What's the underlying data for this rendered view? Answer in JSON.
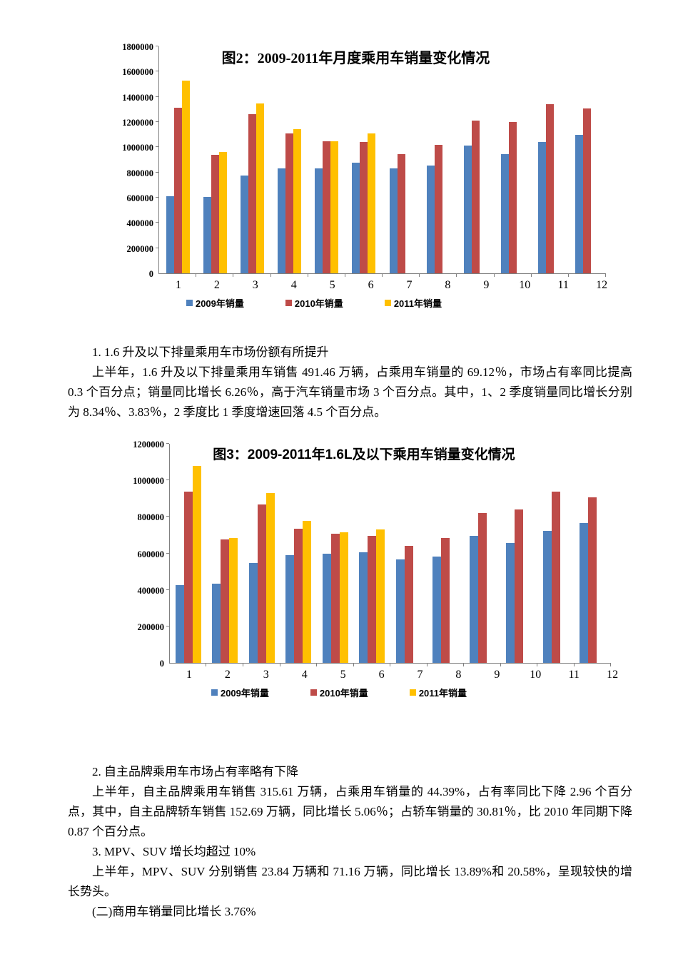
{
  "chart_data": [
    {
      "id": "chart1",
      "type": "bar",
      "title": "图2：2009-2011年月度乘用车销量变化情况",
      "categories": [
        "1",
        "2",
        "3",
        "4",
        "5",
        "6",
        "7",
        "8",
        "9",
        "10",
        "11",
        "12"
      ],
      "series": [
        {
          "name": "2009年销量",
          "color": "#4F81BD",
          "values": [
            610000,
            605000,
            775000,
            830000,
            830000,
            875000,
            830000,
            855000,
            1015000,
            945000,
            1040000,
            1100000
          ]
        },
        {
          "name": "2010年销量",
          "color": "#BE4B48",
          "values": [
            1315000,
            940000,
            1265000,
            1110000,
            1045000,
            1040000,
            945000,
            1020000,
            1210000,
            1200000,
            1340000,
            1310000
          ]
        },
        {
          "name": "2011年销量",
          "color": "#FFC000",
          "values": [
            1530000,
            965000,
            1350000,
            1145000,
            1045000,
            1110000,
            null,
            null,
            null,
            null,
            null,
            null
          ]
        }
      ],
      "xlabel": "",
      "ylabel": "",
      "ylim": [
        0,
        1800000
      ],
      "ytick_step": 200000,
      "grid": false,
      "legend_position": "bottom"
    },
    {
      "id": "chart2",
      "type": "bar",
      "title": "图3：2009-2011年1.6L及以下乘用车销量变化情况",
      "categories": [
        "1",
        "2",
        "3",
        "4",
        "5",
        "6",
        "7",
        "8",
        "9",
        "10",
        "11",
        "12"
      ],
      "series": [
        {
          "name": "2009年销量",
          "color": "#4F81BD",
          "values": [
            425000,
            435000,
            547000,
            592000,
            600000,
            606000,
            565000,
            581000,
            697000,
            656000,
            724000,
            768000
          ]
        },
        {
          "name": "2010年销量",
          "color": "#BE4B48",
          "values": [
            940000,
            675000,
            866000,
            736000,
            707000,
            697000,
            640000,
            684000,
            822000,
            839000,
            940000,
            905000
          ]
        },
        {
          "name": "2011年销量",
          "color": "#FFC000",
          "values": [
            1080000,
            683000,
            932000,
            778000,
            716000,
            730000,
            null,
            null,
            null,
            null,
            null,
            null
          ]
        }
      ],
      "xlabel": "",
      "ylabel": "",
      "ylim": [
        0,
        1200000
      ],
      "ytick_step": 200000,
      "grid": false,
      "legend_position": "bottom"
    }
  ],
  "sections": [
    {
      "heading": "1. 1.6 升及以下排量乘用车市场份额有所提升",
      "body": "上半年，1.6 升及以下排量乘用车销售 491.46 万辆，占乘用车销量的 69.12％，市场占有率同比提高 0.3 个百分点；销量同比增长 6.26％，高于汽车销量市场 3 个百分点。其中，1、2 季度销量同比增长分别为 8.34％、3.83％，2 季度比 1 季度增速回落 4.5 个百分点。"
    },
    {
      "heading": "2. 自主品牌乘用车市场占有率略有下降",
      "body": "上半年，自主品牌乘用车销售 315.61 万辆，占乘用车销量的 44.39%，占有率同比下降 2.96 个百分点，其中，自主品牌轿车销售 152.69 万辆，同比增长 5.06％；占轿车销量的 30.81％，比 2010 年同期下降 0.87 个百分点。"
    },
    {
      "heading": "3. MPV、SUV 增长均超过 10%",
      "body": "上半年，MPV、SUV 分别销售 23.84 万辆和 71.16 万辆，同比增长 13.89%和 20.58%，呈现较快的增长势头。"
    },
    {
      "heading": "(二)商用车销量同比增长 3.76%",
      "body": ""
    }
  ]
}
